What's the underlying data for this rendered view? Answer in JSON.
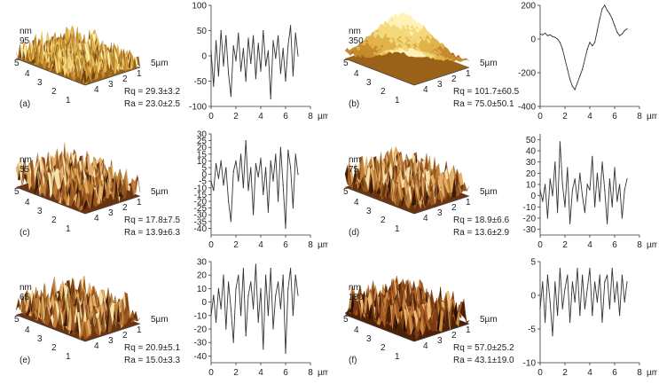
{
  "x_unit": "µm",
  "panels": [
    {
      "letter": "(a)",
      "z_label": "95",
      "z_unit": "nm",
      "xy_unit": "5µm",
      "axis_ticks": [
        "5",
        "4",
        "3",
        "2",
        "1",
        "4",
        "3",
        "2",
        "1"
      ],
      "rq": "Rq = 29.3±3.2",
      "ra": "Ra = 23.0±2.5",
      "seed": 11,
      "roughness": "high",
      "flat": true,
      "palette": "gold"
    },
    {
      "letter": "(b)",
      "z_label": "350",
      "z_unit": "nm",
      "xy_unit": "5µm",
      "axis_ticks": [
        "5",
        "4",
        "3",
        "2",
        "1",
        "4",
        "3",
        "2",
        "1"
      ],
      "rq": "Rq = 101.7±60.5",
      "ra": "Ra = 75.0±50.1",
      "seed": 23,
      "roughness": "smooth",
      "flat": false,
      "palette": "gold"
    },
    {
      "letter": "(c)",
      "z_label": "55",
      "z_unit": "nm",
      "xy_unit": "5µm",
      "axis_ticks": [
        "5",
        "4",
        "3",
        "2",
        "1",
        "4",
        "3",
        "2",
        "1"
      ],
      "rq": "Rq = 17.8±7.5",
      "ra": "Ra = 13.9±6.3",
      "seed": 37,
      "roughness": "medium",
      "flat": false,
      "palette": "brown"
    },
    {
      "letter": "(d)",
      "z_label": "75",
      "z_unit": "nm",
      "xy_unit": "5µm",
      "axis_ticks": [
        "5",
        "4",
        "3",
        "2",
        "1",
        "4",
        "3",
        "2",
        "1"
      ],
      "rq": "Rq = 18.9±6.6",
      "ra": "Ra = 13.6±2.9",
      "seed": 41,
      "roughness": "medium",
      "flat": false,
      "palette": "brown"
    },
    {
      "letter": "(e)",
      "z_label": "65",
      "z_unit": "nm",
      "xy_unit": "5µm",
      "axis_ticks": [
        "5",
        "4",
        "3",
        "2",
        "1",
        "4",
        "3",
        "2",
        "1"
      ],
      "rq": "Rq = 20.9±5.1",
      "ra": "Ra = 15.0±3.3",
      "seed": 53,
      "roughness": "medium",
      "flat": false,
      "palette": "brown"
    },
    {
      "letter": "(f)",
      "z_label": "180",
      "z_unit": "nm",
      "xy_unit": "5µm",
      "axis_ticks": [
        "5",
        "4",
        "3",
        "2",
        "1",
        "4",
        "3",
        "2",
        "1"
      ],
      "rq": "Rq = 57.0±25.2",
      "ra": "Ra = 43.1±19.0",
      "seed": 67,
      "roughness": "medium",
      "flat": false,
      "palette": "dark"
    }
  ],
  "chart_data": [
    {
      "type": "line",
      "panel": "(a)",
      "xlim": [
        0,
        8
      ],
      "ylim": [
        -100,
        100
      ],
      "xticks": [
        "0",
        "2",
        "4",
        "6",
        "8"
      ],
      "yticks": [
        "100",
        "50",
        "0",
        "-50",
        "-100"
      ],
      "x": [
        0,
        0.2,
        0.4,
        0.6,
        0.8,
        1.0,
        1.2,
        1.4,
        1.6,
        1.8,
        2.0,
        2.2,
        2.4,
        2.6,
        2.8,
        3.0,
        3.2,
        3.4,
        3.6,
        3.8,
        4.0,
        4.2,
        4.4,
        4.6,
        4.8,
        5.0,
        5.2,
        5.4,
        5.6,
        5.8,
        6.0,
        6.2,
        6.4,
        6.6,
        6.8,
        7.0
      ],
      "y": [
        10,
        -60,
        30,
        -40,
        50,
        -20,
        40,
        -35,
        -80,
        20,
        -10,
        45,
        -30,
        15,
        -50,
        35,
        -15,
        40,
        -45,
        25,
        -30,
        50,
        -20,
        10,
        -85,
        30,
        -5,
        40,
        -35,
        15,
        -50,
        20,
        60,
        -40,
        45,
        0
      ]
    },
    {
      "type": "line",
      "panel": "(b)",
      "xlim": [
        0,
        8
      ],
      "ylim": [
        -400,
        200
      ],
      "xticks": [
        "0",
        "2",
        "4",
        "6",
        "8"
      ],
      "yticks": [
        "200",
        "0",
        "-200",
        "-400"
      ],
      "x": [
        0,
        0.2,
        0.4,
        0.6,
        0.8,
        1.0,
        1.2,
        1.4,
        1.6,
        1.8,
        2.0,
        2.2,
        2.4,
        2.6,
        2.8,
        3.0,
        3.2,
        3.4,
        3.6,
        3.8,
        4.0,
        4.2,
        4.4,
        4.6,
        4.8,
        5.0,
        5.2,
        5.4,
        5.6,
        5.8,
        6.0,
        6.2,
        6.4,
        6.6,
        6.8,
        7.0
      ],
      "y": [
        30,
        25,
        35,
        20,
        25,
        15,
        10,
        0,
        -20,
        -60,
        -120,
        -180,
        -240,
        -280,
        -300,
        -260,
        -220,
        -180,
        -120,
        -60,
        -20,
        -40,
        -20,
        50,
        120,
        180,
        200,
        170,
        150,
        120,
        80,
        40,
        20,
        30,
        50,
        60
      ]
    },
    {
      "type": "line",
      "panel": "(c)",
      "xlim": [
        0,
        8
      ],
      "ylim": [
        -45,
        30
      ],
      "xticks": [
        "0",
        "2",
        "4",
        "6",
        "8"
      ],
      "yticks": [
        "30",
        "25",
        "20",
        "15",
        "10",
        "5",
        "0",
        "-5",
        "-10",
        "-15",
        "-20",
        "-25",
        "-30",
        "-35",
        "-40"
      ],
      "x": [
        0,
        0.2,
        0.4,
        0.6,
        0.8,
        1.0,
        1.2,
        1.4,
        1.6,
        1.8,
        2.0,
        2.2,
        2.4,
        2.6,
        2.8,
        3.0,
        3.2,
        3.4,
        3.6,
        3.8,
        4.0,
        4.2,
        4.4,
        4.6,
        4.8,
        5.0,
        5.2,
        5.4,
        5.6,
        5.8,
        6.0,
        6.2,
        6.4,
        6.6,
        6.8,
        7.0
      ],
      "y": [
        -5,
        -12,
        8,
        -3,
        10,
        -8,
        5,
        -20,
        -35,
        2,
        10,
        -5,
        15,
        -10,
        25,
        -12,
        5,
        -30,
        8,
        -2,
        12,
        -15,
        5,
        -28,
        10,
        -5,
        15,
        -20,
        20,
        -8,
        -40,
        18,
        5,
        -25,
        15,
        0
      ]
    },
    {
      "type": "line",
      "panel": "(d)",
      "xlim": [
        0,
        8
      ],
      "ylim": [
        -35,
        55
      ],
      "xticks": [
        "0",
        "2",
        "4",
        "6",
        "8"
      ],
      "yticks": [
        "50",
        "40",
        "30",
        "20",
        "10",
        "0",
        "-10",
        "-20",
        "-30"
      ],
      "x": [
        0,
        0.2,
        0.4,
        0.6,
        0.8,
        1.0,
        1.2,
        1.4,
        1.6,
        1.8,
        2.0,
        2.2,
        2.4,
        2.6,
        2.8,
        3.0,
        3.2,
        3.4,
        3.6,
        3.8,
        4.0,
        4.2,
        4.4,
        4.6,
        4.8,
        5.0,
        5.2,
        5.4,
        5.6,
        5.8,
        6.0,
        6.2,
        6.4,
        6.6,
        6.8,
        7.0
      ],
      "y": [
        5,
        -5,
        10,
        -20,
        15,
        0,
        30,
        -15,
        48,
        10,
        -10,
        25,
        -25,
        5,
        15,
        -5,
        20,
        0,
        -15,
        10,
        5,
        35,
        -10,
        20,
        -5,
        30,
        5,
        -25,
        15,
        -10,
        25,
        -5,
        10,
        -20,
        5,
        15
      ]
    },
    {
      "type": "line",
      "panel": "(e)",
      "xlim": [
        0,
        8
      ],
      "ylim": [
        -45,
        30
      ],
      "xticks": [
        "0",
        "2",
        "4",
        "6",
        "8"
      ],
      "yticks": [
        "30",
        "20",
        "10",
        "0",
        "-10",
        "-20",
        "-30",
        "-40"
      ],
      "x": [
        0,
        0.2,
        0.4,
        0.6,
        0.8,
        1.0,
        1.2,
        1.4,
        1.6,
        1.8,
        2.0,
        2.2,
        2.4,
        2.6,
        2.8,
        3.0,
        3.2,
        3.4,
        3.6,
        3.8,
        4.0,
        4.2,
        4.4,
        4.6,
        4.8,
        5.0,
        5.2,
        5.4,
        5.6,
        5.8,
        6.0,
        6.2,
        6.4,
        6.6,
        6.8,
        7.0
      ],
      "y": [
        -10,
        5,
        -15,
        10,
        -5,
        20,
        -20,
        15,
        -5,
        -30,
        10,
        20,
        -10,
        25,
        -25,
        5,
        15,
        -5,
        28,
        -15,
        10,
        -35,
        20,
        -10,
        25,
        -20,
        5,
        15,
        -5,
        20,
        -38,
        10,
        25,
        -10,
        20,
        5
      ]
    },
    {
      "type": "line",
      "panel": "(f)",
      "xlim": [
        0,
        8
      ],
      "ylim": [
        -10,
        5
      ],
      "xticks": [
        "0",
        "2",
        "4",
        "6",
        "8"
      ],
      "yticks": [
        "5",
        "0",
        "-5",
        "-10"
      ],
      "x": [
        0,
        0.2,
        0.4,
        0.6,
        0.8,
        1.0,
        1.2,
        1.4,
        1.6,
        1.8,
        2.0,
        2.2,
        2.4,
        2.6,
        2.8,
        3.0,
        3.2,
        3.4,
        3.6,
        3.8,
        4.0,
        4.2,
        4.4,
        4.6,
        4.8,
        5.0,
        5.2,
        5.4,
        5.6,
        5.8,
        6.0,
        6.2,
        6.4,
        6.6,
        6.8,
        7.0
      ],
      "y": [
        -2,
        2,
        -4,
        3,
        -1,
        -6,
        2,
        -3,
        4,
        -2,
        1,
        3,
        -4,
        2,
        -1,
        4,
        -3,
        3,
        -2,
        1,
        4,
        -3,
        2,
        -1,
        3,
        -4,
        2,
        3,
        -2,
        4,
        -1,
        2,
        -3,
        3,
        -1,
        2
      ]
    }
  ]
}
